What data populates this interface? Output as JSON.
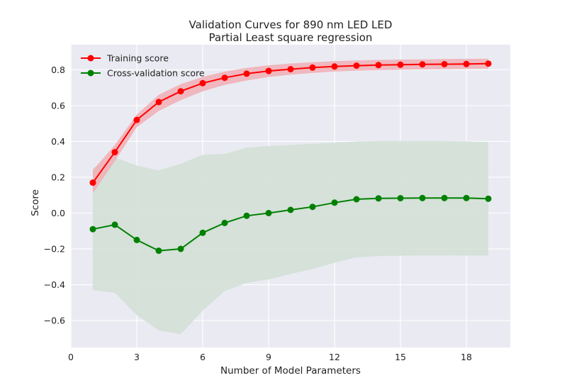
{
  "chart_data": {
    "type": "line",
    "title_lines": [
      "Validation Curves for 890 nm LED LED",
      "Partial Least square regression"
    ],
    "xlabel": "Number of Model Parameters",
    "ylabel": "Score",
    "xlim": [
      0,
      20
    ],
    "ylim": [
      -0.75,
      0.94
    ],
    "x_ticks": [
      0,
      3,
      6,
      9,
      12,
      15,
      18
    ],
    "x_tick_labels": [
      "0",
      "3",
      "6",
      "9",
      "12",
      "15",
      "18"
    ],
    "y_ticks": [
      -0.6,
      -0.4,
      -0.2,
      0.0,
      0.2,
      0.4,
      0.6,
      0.8
    ],
    "y_tick_labels": [
      "−0.6",
      "−0.4",
      "−0.2",
      "0.0",
      "0.2",
      "0.4",
      "0.6",
      "0.8"
    ],
    "grid": true,
    "legend_position": "top-left",
    "x": [
      1,
      2,
      3,
      4,
      5,
      6,
      7,
      8,
      9,
      10,
      11,
      12,
      13,
      14,
      15,
      16,
      17,
      18,
      19
    ],
    "series": [
      {
        "name": "Training score",
        "color": "#ff0000",
        "band_color": "#f1aeb5",
        "values": [
          0.17,
          0.34,
          0.52,
          0.62,
          0.68,
          0.725,
          0.755,
          0.778,
          0.793,
          0.803,
          0.812,
          0.818,
          0.823,
          0.826,
          0.828,
          0.83,
          0.831,
          0.832,
          0.834
        ],
        "upper": [
          0.24,
          0.38,
          0.55,
          0.66,
          0.72,
          0.76,
          0.79,
          0.81,
          0.825,
          0.835,
          0.842,
          0.848,
          0.852,
          0.855,
          0.857,
          0.858,
          0.86,
          0.861,
          0.862
        ],
        "lower": [
          0.11,
          0.29,
          0.48,
          0.57,
          0.63,
          0.68,
          0.715,
          0.74,
          0.76,
          0.772,
          0.782,
          0.79,
          0.795,
          0.798,
          0.8,
          0.802,
          0.803,
          0.805,
          0.806
        ]
      },
      {
        "name": "Cross-validation score",
        "color": "#008000",
        "band_color": "#d1dfd5",
        "values": [
          -0.09,
          -0.065,
          -0.15,
          -0.21,
          -0.2,
          -0.11,
          -0.055,
          -0.015,
          0.0,
          0.018,
          0.035,
          0.058,
          0.077,
          0.082,
          0.083,
          0.084,
          0.084,
          0.084,
          0.08
        ],
        "upper": [
          0.25,
          0.31,
          0.265,
          0.238,
          0.275,
          0.325,
          0.33,
          0.365,
          0.375,
          0.38,
          0.387,
          0.393,
          0.4,
          0.402,
          0.403,
          0.403,
          0.402,
          0.4,
          0.396
        ],
        "lower": [
          -0.43,
          -0.445,
          -0.57,
          -0.655,
          -0.675,
          -0.545,
          -0.435,
          -0.39,
          -0.37,
          -0.34,
          -0.312,
          -0.277,
          -0.247,
          -0.24,
          -0.238,
          -0.236,
          -0.236,
          -0.237,
          -0.237
        ]
      }
    ]
  }
}
